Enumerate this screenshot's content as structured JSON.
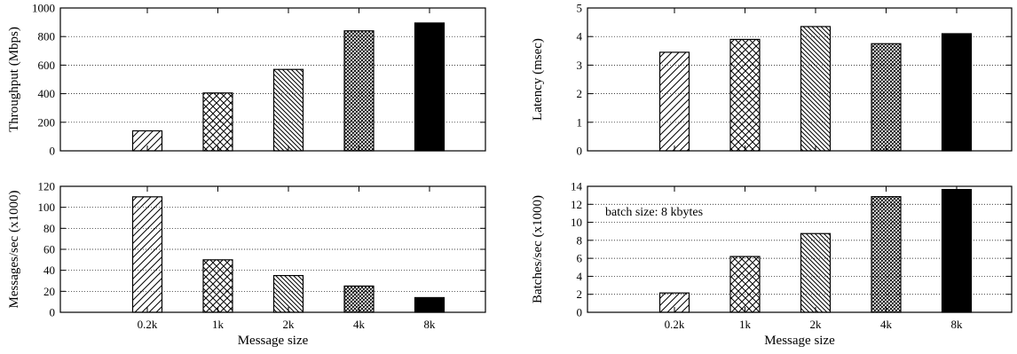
{
  "chart_data": [
    {
      "type": "bar",
      "categories": [
        "0.2k",
        "1k",
        "2k",
        "4k",
        "8k"
      ],
      "values": [
        140,
        405,
        570,
        840,
        895
      ],
      "ylabel": "Throughput (Mbps)",
      "xlabel": "",
      "ylim": [
        0,
        1000
      ],
      "yticks": [
        0,
        200,
        400,
        600,
        800,
        1000
      ],
      "show_category_labels": false,
      "grid": "horizontal-dotted"
    },
    {
      "type": "bar",
      "categories": [
        "0.2k",
        "1k",
        "2k",
        "4k",
        "8k"
      ],
      "values": [
        3.45,
        3.9,
        4.35,
        3.75,
        4.1
      ],
      "ylabel": "Latency (msec)",
      "xlabel": "",
      "ylim": [
        0,
        5
      ],
      "yticks": [
        0,
        1,
        2,
        3,
        4,
        5
      ],
      "show_category_labels": false,
      "grid": "horizontal-dotted"
    },
    {
      "type": "bar",
      "categories": [
        "0.2k",
        "1k",
        "2k",
        "4k",
        "8k"
      ],
      "values": [
        110,
        50,
        35,
        25,
        14
      ],
      "ylabel": "Messages/sec (x1000)",
      "xlabel": "Message size",
      "ylim": [
        0,
        120
      ],
      "yticks": [
        0,
        20,
        40,
        60,
        80,
        100,
        120
      ],
      "show_category_labels": true,
      "grid": "horizontal-dotted"
    },
    {
      "type": "bar",
      "categories": [
        "0.2k",
        "1k",
        "2k",
        "4k",
        "8k"
      ],
      "values": [
        2.15,
        6.2,
        8.75,
        12.85,
        13.65
      ],
      "ylabel": "Batches/sec (x1000)",
      "xlabel": "Message size",
      "ylim": [
        0,
        14
      ],
      "yticks": [
        0,
        2,
        4,
        6,
        8,
        10,
        12,
        14
      ],
      "show_category_labels": true,
      "annotation": "batch size: 8 kbytes",
      "grid": "horizontal-dotted"
    }
  ]
}
